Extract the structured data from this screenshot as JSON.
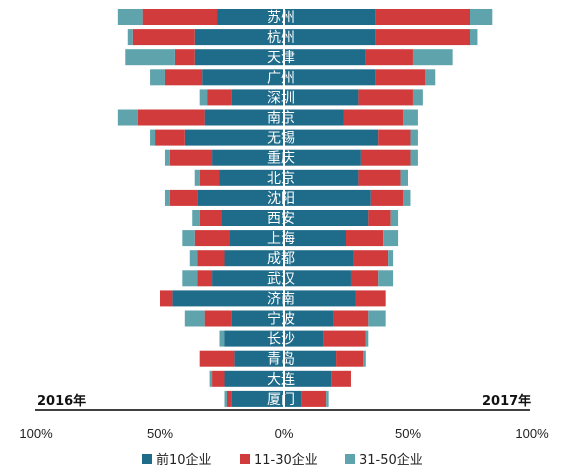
{
  "chart_data": {
    "type": "bar",
    "orientation": "horizontal-diverging-stacked",
    "left_label": "2016年",
    "right_label": "2017年",
    "categories": [
      "苏州",
      "杭州",
      "天津",
      "广州",
      "深圳",
      "南京",
      "无锡",
      "重庆",
      "北京",
      "沈阳",
      "西安",
      "上海",
      "成都",
      "武汉",
      "济南",
      "宁波",
      "长沙",
      "青岛",
      "大连",
      "厦门"
    ],
    "xticks": [
      "100%",
      "50%",
      "0%",
      "50%",
      "100%"
    ],
    "xlim": [
      -100,
      100
    ],
    "series": [
      {
        "name": "前10企业",
        "color": "#1f6b8a",
        "left": [
          27,
          36,
          36,
          33,
          21,
          32,
          40,
          29,
          26,
          35,
          25,
          22,
          24,
          29,
          45,
          21,
          24,
          20,
          24,
          21
        ],
        "right": [
          37,
          37,
          33,
          37,
          30,
          24,
          38,
          31,
          30,
          35,
          34,
          25,
          28,
          27,
          29,
          20,
          16,
          21,
          19,
          7
        ]
      },
      {
        "name": "11-30企业",
        "color": "#d13b3b",
        "left": [
          30,
          25,
          8,
          15,
          10,
          27,
          12,
          17,
          8,
          11,
          9,
          14,
          11,
          6,
          5,
          11,
          0,
          14,
          5,
          2
        ],
        "right": [
          38,
          38,
          19,
          20,
          22,
          24,
          13,
          20,
          17,
          13,
          9,
          15,
          14,
          11,
          12,
          14,
          17,
          11,
          8,
          10
        ]
      },
      {
        "name": "31-50企业",
        "color": "#5fa3ad",
        "left": [
          10,
          2,
          20,
          6,
          3,
          8,
          2,
          2,
          2,
          2,
          3,
          5,
          3,
          6,
          0,
          8,
          2,
          0,
          1,
          1
        ],
        "right": [
          9,
          3,
          16,
          4,
          4,
          6,
          3,
          3,
          3,
          3,
          3,
          6,
          2,
          6,
          0,
          7,
          1,
          1,
          0,
          1
        ]
      }
    ]
  },
  "legend": {
    "items": [
      {
        "label": "前10企业",
        "color": "#1f6b8a"
      },
      {
        "label": "11-30企业",
        "color": "#d13b3b"
      },
      {
        "label": "31-50企业",
        "color": "#5fa3ad"
      }
    ]
  }
}
